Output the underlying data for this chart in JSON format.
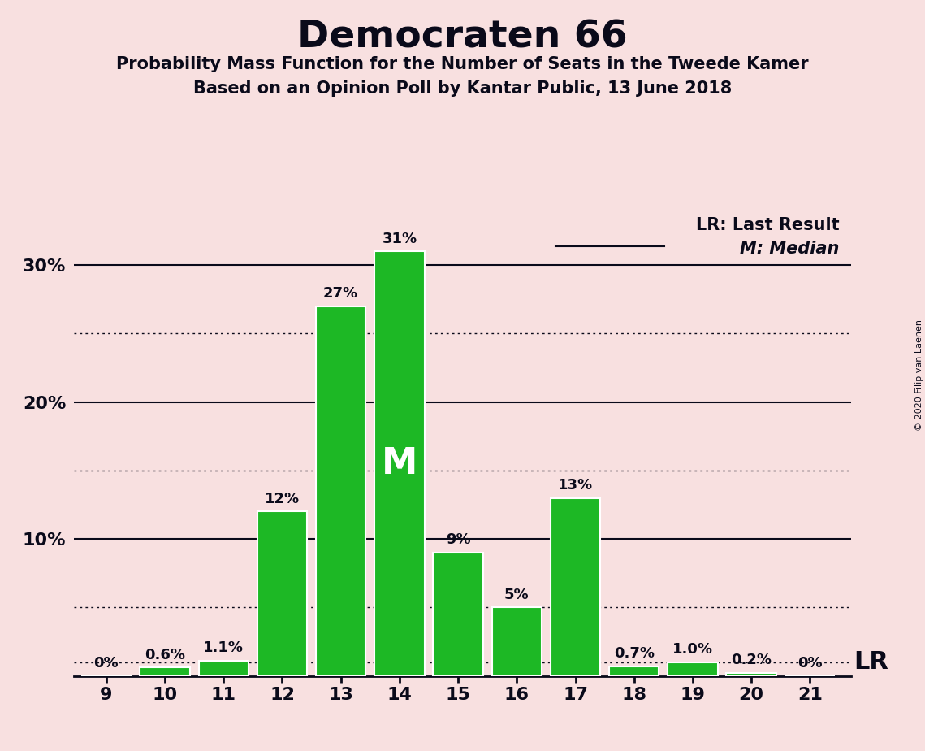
{
  "title": "Democraten 66",
  "subtitle1": "Probability Mass Function for the Number of Seats in the Tweede Kamer",
  "subtitle2": "Based on an Opinion Poll by Kantar Public, 13 June 2018",
  "copyright": "© 2020 Filip van Laenen",
  "seats": [
    9,
    10,
    11,
    12,
    13,
    14,
    15,
    16,
    17,
    18,
    19,
    20,
    21
  ],
  "probabilities": [
    0.0,
    0.6,
    1.1,
    12.0,
    27.0,
    31.0,
    9.0,
    5.0,
    13.0,
    0.7,
    1.0,
    0.2,
    0.0
  ],
  "bar_labels": [
    "0%",
    "0.6%",
    "1.1%",
    "12%",
    "27%",
    "31%",
    "9%",
    "5%",
    "13%",
    "0.7%",
    "1.0%",
    "0.2%",
    "0%"
  ],
  "bar_color": "#1db825",
  "background_color": "#f8e0e0",
  "text_color": "#0a0a1a",
  "median_seat": 14,
  "lr_seat": 19,
  "lr_value": 1.0,
  "ylim": [
    0,
    34
  ],
  "legend_lr": "LR: Last Result",
  "legend_m": "M: Median",
  "dotted_gridlines": [
    5,
    15,
    25
  ],
  "solid_gridlines": [
    10,
    20,
    30
  ],
  "ytick_positions": [
    10,
    20,
    30
  ],
  "ytick_labels": [
    "10%",
    "20%",
    "30%"
  ]
}
